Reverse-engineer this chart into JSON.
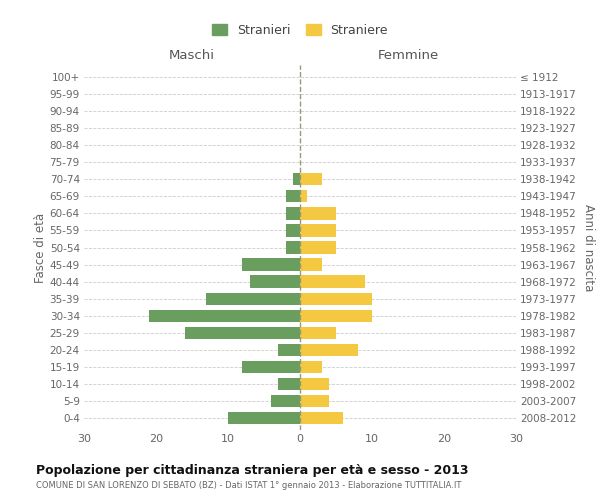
{
  "age_groups": [
    "0-4",
    "5-9",
    "10-14",
    "15-19",
    "20-24",
    "25-29",
    "30-34",
    "35-39",
    "40-44",
    "45-49",
    "50-54",
    "55-59",
    "60-64",
    "65-69",
    "70-74",
    "75-79",
    "80-84",
    "85-89",
    "90-94",
    "95-99",
    "100+"
  ],
  "birth_years": [
    "2008-2012",
    "2003-2007",
    "1998-2002",
    "1993-1997",
    "1988-1992",
    "1983-1987",
    "1978-1982",
    "1973-1977",
    "1968-1972",
    "1963-1967",
    "1958-1962",
    "1953-1957",
    "1948-1952",
    "1943-1947",
    "1938-1942",
    "1933-1937",
    "1928-1932",
    "1923-1927",
    "1918-1922",
    "1913-1917",
    "≤ 1912"
  ],
  "males": [
    10,
    4,
    3,
    8,
    3,
    16,
    21,
    13,
    7,
    8,
    2,
    2,
    2,
    2,
    1,
    0,
    0,
    0,
    0,
    0,
    0
  ],
  "females": [
    6,
    4,
    4,
    3,
    8,
    5,
    10,
    10,
    9,
    3,
    5,
    5,
    5,
    1,
    3,
    0,
    0,
    0,
    0,
    0,
    0
  ],
  "male_color": "#6a9e5f",
  "female_color": "#f5c842",
  "title": "Popolazione per cittadinanza straniera per età e sesso - 2013",
  "subtitle": "COMUNE DI SAN LORENZO DI SEBATO (BZ) - Dati ISTAT 1° gennaio 2013 - Elaborazione TUTTITALIA.IT",
  "xlabel_left": "Maschi",
  "xlabel_right": "Femmine",
  "ylabel_left": "Fasce di età",
  "ylabel_right": "Anni di nascita",
  "legend_males": "Stranieri",
  "legend_females": "Straniere",
  "xlim": 30,
  "background_color": "#ffffff",
  "grid_color": "#cccccc"
}
